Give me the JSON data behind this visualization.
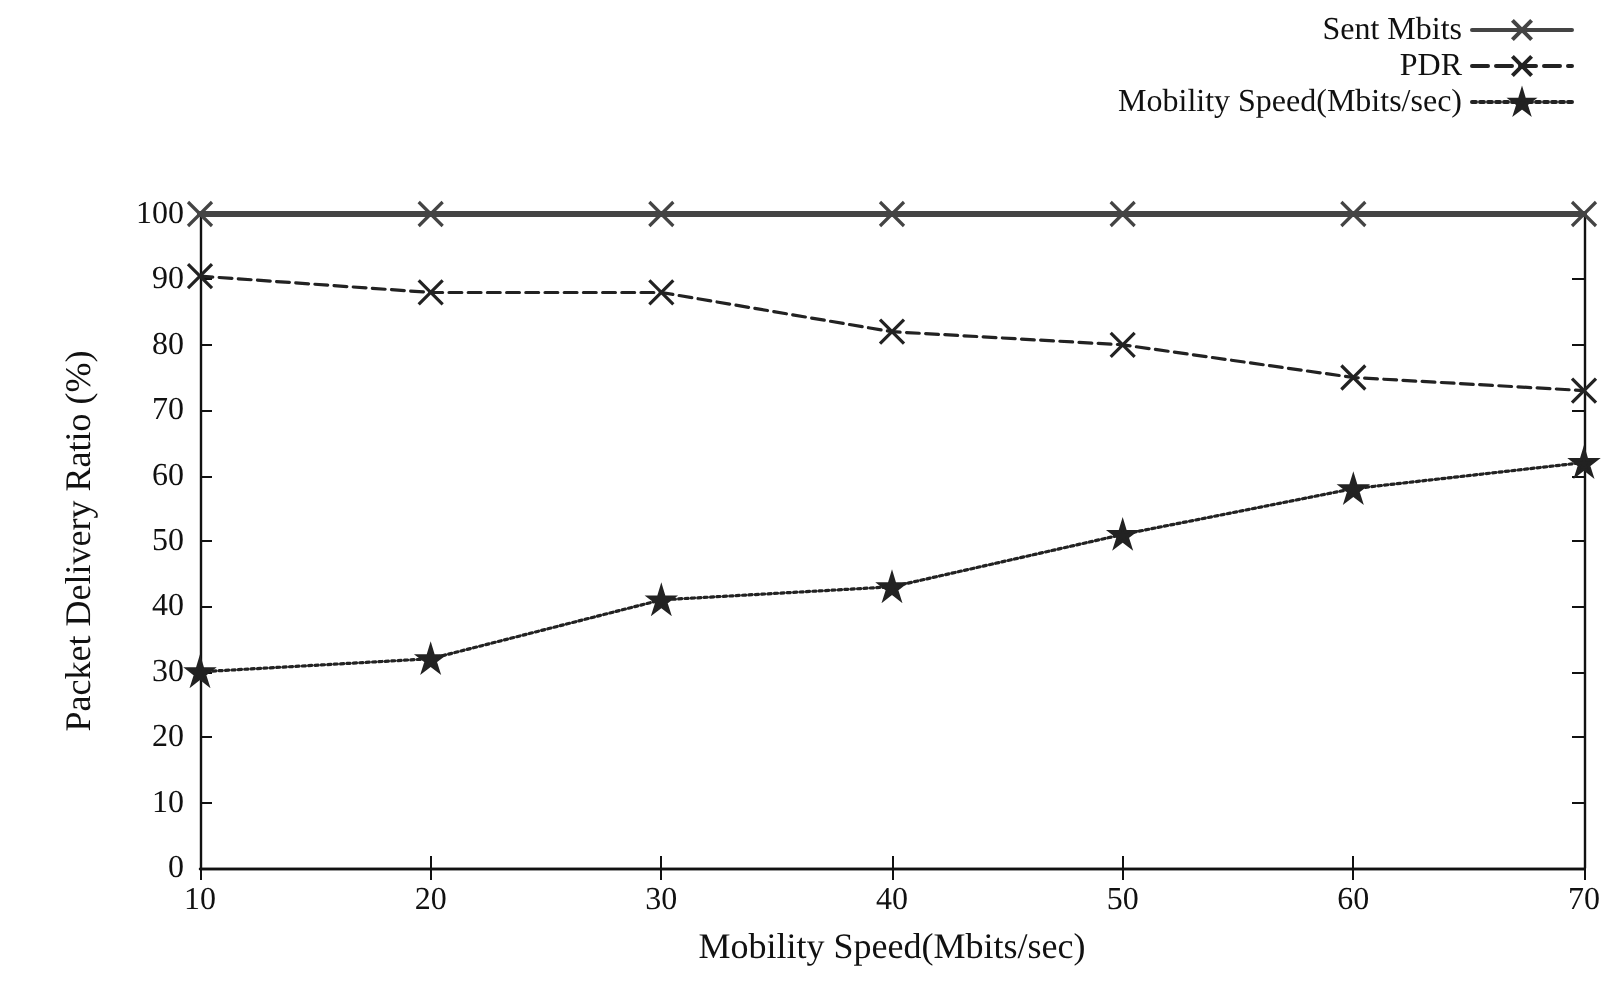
{
  "chart_data": {
    "type": "line",
    "xlabel": "Mobility Speed(Mbits/sec)",
    "ylabel": "Packet Delivery Ratio (%)",
    "x": [
      10,
      20,
      30,
      40,
      50,
      60,
      70
    ],
    "series": [
      {
        "name": "Sent Mbits",
        "color": "#444444",
        "values": [
          100,
          100,
          100,
          100,
          100,
          100,
          100
        ],
        "line_style": "solid",
        "marker": "cross"
      },
      {
        "name": "PDR",
        "color": "#222222",
        "values": [
          90.5,
          88,
          88,
          82,
          80,
          75,
          73
        ],
        "line_style": "dashed",
        "marker": "cross"
      },
      {
        "name": "Mobility Speed(Mbits/sec)",
        "color": "#222222",
        "values": [
          30,
          32,
          41,
          43,
          51,
          58,
          62
        ],
        "line_style": "dotted",
        "marker": "star"
      }
    ],
    "xlim": [
      10,
      70
    ],
    "xticks": [
      10,
      20,
      30,
      40,
      50,
      60,
      70
    ],
    "ylim": [
      0,
      100
    ],
    "yticks": [
      0,
      10,
      20,
      30,
      40,
      50,
      60,
      70,
      80,
      90,
      100
    ],
    "grid": false,
    "legend": "top right"
  }
}
